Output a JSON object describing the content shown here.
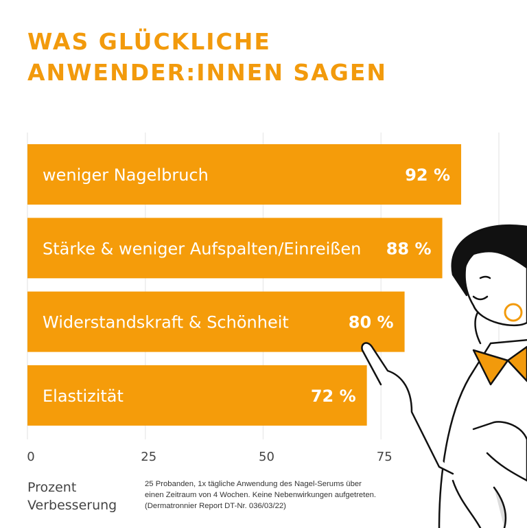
{
  "title_lines": [
    "WAS GLÜCKLICHE",
    "ANWENDER:INNEN SAGEN"
  ],
  "chart_data": {
    "type": "bar",
    "orientation": "horizontal",
    "categories": [
      "weniger Nagelbruch",
      "Stärke & weniger Aufspalten/Einreißen",
      "Widerstandskraft & Schönheit",
      "Elastizität"
    ],
    "values": [
      92,
      88,
      80,
      72
    ],
    "data_labels": [
      "92 %",
      "88 %",
      "80 %",
      "72 %"
    ],
    "xlim": [
      0,
      100
    ],
    "xticks": [
      0,
      25,
      50,
      75
    ],
    "xtick_labels": [
      "0",
      "25",
      "50",
      "75"
    ],
    "xlabel": "Prozent Verbesserung",
    "grid": true,
    "bar_color": "#f59c0a"
  },
  "xlabel_lines": [
    "Prozent",
    "Verbesserung"
  ],
  "note_lines": [
    "25 Probanden, 1x tägliche Anwendung des Nagel-Serums über",
    "einen Zeitraum von 4 Wochen. Keine Nebenwirkungen aufgetreten.",
    "(Dermatronnier Report DT-Nr. 036/03/22)"
  ],
  "colors": {
    "accent": "#f29a0c",
    "text": "#444444"
  }
}
